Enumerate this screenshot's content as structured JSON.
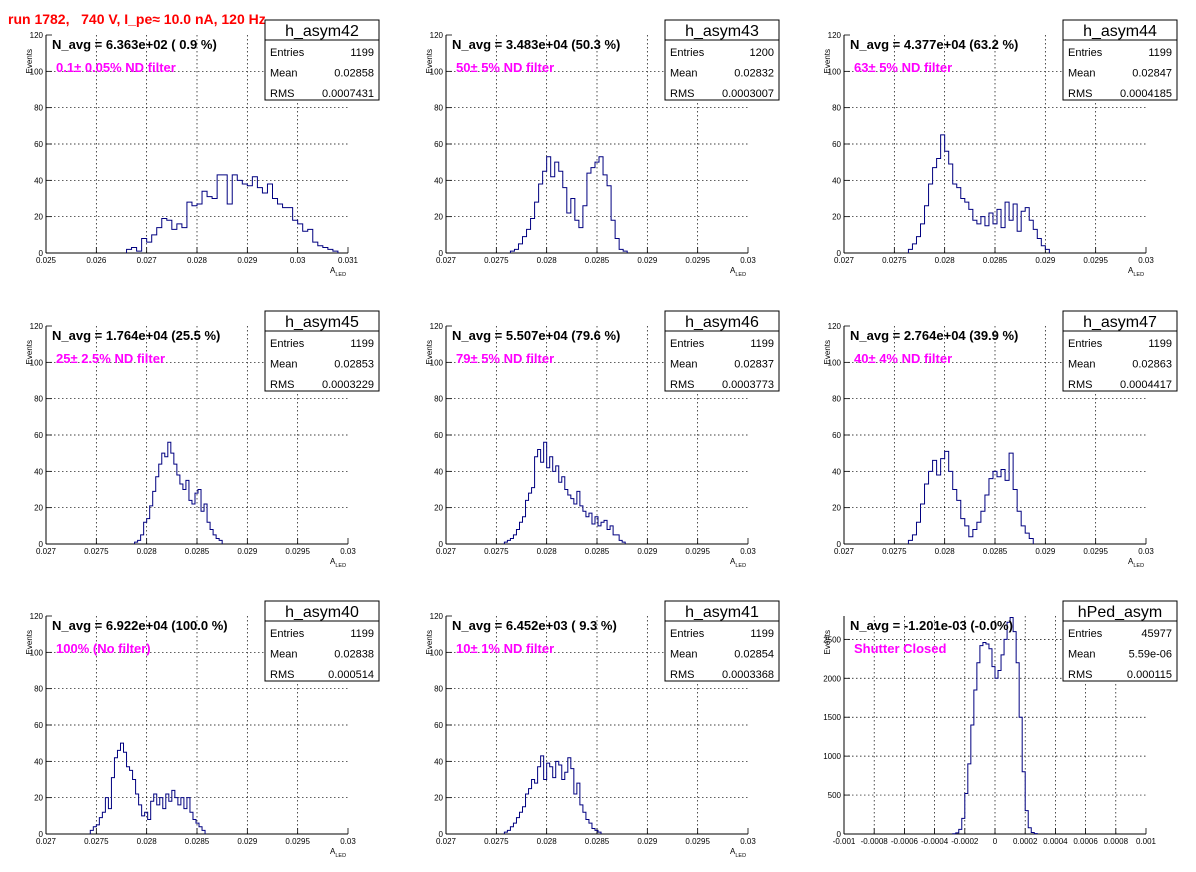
{
  "page_title": "run 1782,   740 V, I_pe≈ 10.0 nA, 120 Hz",
  "colors": {
    "histogram": "#000080",
    "title": "#ff0000",
    "filter_label": "#ff00ff"
  },
  "chart_data": [
    {
      "type": "histogram",
      "name": "h_asym42",
      "navg": "N_avg = 6.363e+02 ( 0.9 %)",
      "filter": "0.1± 0.05% ND filter",
      "stats": {
        "entries": "1199",
        "mean": "0.02858",
        "rms": "0.0007431"
      },
      "xlim": [
        0.025,
        0.031
      ],
      "xticks": [
        "0.025",
        "0.026",
        "0.027",
        "0.028",
        "0.029",
        "0.03",
        "0.031"
      ],
      "ylim": [
        0,
        120
      ],
      "yticks": [
        "0",
        "20",
        "40",
        "60",
        "80",
        "100",
        "120"
      ],
      "xlabel": "A",
      "xlabel_sub": "LED",
      "ylabel": "Events",
      "x_start": 0.0266,
      "bin_width": 0.0001,
      "counts": [
        2,
        3,
        1,
        8,
        6,
        10,
        14,
        19,
        18,
        13,
        16,
        14,
        28,
        26,
        27,
        34,
        31,
        30,
        43,
        43,
        27,
        43,
        40,
        38,
        37,
        42,
        36,
        33,
        38,
        30,
        27,
        25,
        25,
        18,
        16,
        12,
        13,
        6,
        4,
        3,
        2,
        1
      ]
    },
    {
      "type": "histogram",
      "name": "h_asym43",
      "navg": "N_avg = 3.483e+04 (50.3 %)",
      "filter": "50± 5% ND filter",
      "stats": {
        "entries": "1200",
        "mean": "0.02832",
        "rms": "0.0003007"
      },
      "xlim": [
        0.027,
        0.03
      ],
      "xticks": [
        "0.027",
        "0.0275",
        "0.028",
        "0.0285",
        "0.029",
        "0.0295",
        "0.03"
      ],
      "ylim": [
        0,
        120
      ],
      "yticks": [
        "0",
        "20",
        "40",
        "60",
        "80",
        "100",
        "120"
      ],
      "xlabel": "A",
      "xlabel_sub": "LED",
      "ylabel": "Events",
      "x_start": 0.02764,
      "bin_width": 4e-05,
      "counts": [
        1,
        2,
        5,
        9,
        13,
        19,
        28,
        38,
        45,
        53,
        42,
        50,
        45,
        36,
        22,
        30,
        18,
        14,
        26,
        44,
        47,
        50,
        53,
        43,
        37,
        18,
        8,
        2,
        1
      ]
    },
    {
      "type": "histogram",
      "name": "h_asym44",
      "navg": "N_avg = 4.377e+04 (63.2 %)",
      "filter": "63± 5% ND filter",
      "stats": {
        "entries": "1199",
        "mean": "0.02847",
        "rms": "0.0004185"
      },
      "xlim": [
        0.027,
        0.03
      ],
      "xticks": [
        "0.027",
        "0.0275",
        "0.028",
        "0.0285",
        "0.029",
        "0.0295",
        "0.03"
      ],
      "ylim": [
        0,
        120
      ],
      "yticks": [
        "0",
        "20",
        "40",
        "60",
        "80",
        "100",
        "120"
      ],
      "xlabel": "A",
      "xlabel_sub": "LED",
      "ylabel": "Events",
      "x_start": 0.02764,
      "bin_width": 4e-05,
      "counts": [
        2,
        5,
        9,
        16,
        26,
        38,
        47,
        52,
        65,
        56,
        49,
        38,
        36,
        30,
        28,
        24,
        18,
        16,
        20,
        15,
        22,
        16,
        24,
        14,
        28,
        18,
        27,
        12,
        23,
        25,
        18,
        13,
        8,
        4,
        2
      ]
    },
    {
      "type": "histogram",
      "name": "h_asym45",
      "navg": "N_avg = 1.764e+04 (25.5 %)",
      "filter": "25± 2.5% ND filter",
      "stats": {
        "entries": "1199",
        "mean": "0.02853",
        "rms": "0.0003229"
      },
      "xlim": [
        0.027,
        0.03
      ],
      "xticks": [
        "0.027",
        "0.0275",
        "0.028",
        "0.0285",
        "0.029",
        "0.0295",
        "0.03"
      ],
      "ylim": [
        0,
        120
      ],
      "yticks": [
        "0",
        "20",
        "40",
        "60",
        "80",
        "100",
        "120"
      ],
      "xlabel": "A",
      "xlabel_sub": "LED",
      "ylabel": "Events",
      "x_start": 0.02788,
      "bin_width": 3e-05,
      "counts": [
        1,
        2,
        5,
        12,
        14,
        21,
        29,
        37,
        44,
        50,
        48,
        56,
        50,
        44,
        38,
        33,
        30,
        35,
        24,
        22,
        28,
        30,
        18,
        22,
        12,
        8,
        5,
        3,
        2
      ]
    },
    {
      "type": "histogram",
      "name": "h_asym46",
      "navg": "N_avg = 5.507e+04 (79.6 %)",
      "filter": "79± 5% ND filter",
      "stats": {
        "entries": "1199",
        "mean": "0.02837",
        "rms": "0.0003773"
      },
      "xlim": [
        0.027,
        0.03
      ],
      "xticks": [
        "0.027",
        "0.0275",
        "0.028",
        "0.0285",
        "0.029",
        "0.0295",
        "0.03"
      ],
      "ylim": [
        0,
        120
      ],
      "yticks": [
        "0",
        "20",
        "40",
        "60",
        "80",
        "100",
        "120"
      ],
      "xlabel": "A",
      "xlabel_sub": "LED",
      "ylabel": "Events",
      "x_start": 0.02758,
      "bin_width": 3e-05,
      "counts": [
        1,
        2,
        3,
        5,
        8,
        12,
        15,
        24,
        28,
        31,
        48,
        52,
        45,
        56,
        42,
        48,
        40,
        43,
        34,
        37,
        30,
        27,
        25,
        22,
        29,
        21,
        18,
        15,
        17,
        11,
        15,
        10,
        12,
        13,
        8,
        10,
        5,
        5,
        2,
        1
      ]
    },
    {
      "type": "histogram",
      "name": "h_asym47",
      "navg": "N_avg = 2.764e+04 (39.9 %)",
      "filter": "40± 4% ND filter",
      "stats": {
        "entries": "1199",
        "mean": "0.02863",
        "rms": "0.0004417"
      },
      "xlim": [
        0.027,
        0.03
      ],
      "xticks": [
        "0.027",
        "0.0275",
        "0.028",
        "0.0285",
        "0.029",
        "0.0295",
        "0.03"
      ],
      "ylim": [
        0,
        120
      ],
      "yticks": [
        "0",
        "20",
        "40",
        "60",
        "80",
        "100",
        "120"
      ],
      "xlabel": "A",
      "xlabel_sub": "LED",
      "ylabel": "Events",
      "x_start": 0.02764,
      "bin_width": 4e-05,
      "counts": [
        2,
        5,
        12,
        22,
        33,
        40,
        46,
        38,
        47,
        51,
        40,
        30,
        24,
        14,
        10,
        4,
        8,
        12,
        18,
        27,
        36,
        40,
        37,
        41,
        35,
        50,
        30,
        18,
        10,
        6,
        3
      ]
    },
    {
      "type": "histogram",
      "name": "h_asym40",
      "navg": "N_avg = 6.922e+04 (100.0 %)",
      "filter": "100% (No filter)",
      "stats": {
        "entries": "1199",
        "mean": "0.02838",
        "rms": "0.000514"
      },
      "xlim": [
        0.027,
        0.03
      ],
      "xticks": [
        "0.027",
        "0.0275",
        "0.028",
        "0.0285",
        "0.029",
        "0.0295",
        "0.03"
      ],
      "ylim": [
        0,
        120
      ],
      "yticks": [
        "0",
        "20",
        "40",
        "60",
        "80",
        "100",
        "120"
      ],
      "xlabel": "A",
      "xlabel_sub": "LED",
      "ylabel": "Events",
      "x_start": 0.02744,
      "bin_width": 3e-05,
      "counts": [
        2,
        4,
        5,
        9,
        12,
        20,
        14,
        31,
        42,
        46,
        50,
        45,
        37,
        35,
        30,
        22,
        16,
        10,
        12,
        8,
        18,
        22,
        16,
        20,
        14,
        22,
        18,
        24,
        20,
        16,
        20,
        14,
        20,
        12,
        8,
        6,
        4,
        2
      ]
    },
    {
      "type": "histogram",
      "name": "h_asym41",
      "navg": "N_avg = 6.452e+03 ( 9.3 %)",
      "filter": "10± 1% ND filter",
      "stats": {
        "entries": "1199",
        "mean": "0.02854",
        "rms": "0.0003368"
      },
      "xlim": [
        0.027,
        0.03
      ],
      "xticks": [
        "0.027",
        "0.0275",
        "0.028",
        "0.0285",
        "0.029",
        "0.0295",
        "0.03"
      ],
      "ylim": [
        0,
        120
      ],
      "yticks": [
        "0",
        "20",
        "40",
        "60",
        "80",
        "100",
        "120"
      ],
      "xlabel": "A",
      "xlabel_sub": "LED",
      "ylabel": "Events",
      "x_start": 0.02758,
      "bin_width": 3e-05,
      "counts": [
        1,
        2,
        4,
        6,
        9,
        12,
        15,
        22,
        25,
        30,
        28,
        37,
        43,
        30,
        39,
        37,
        31,
        40,
        38,
        30,
        34,
        42,
        36,
        22,
        28,
        16,
        12,
        8,
        6,
        3,
        2,
        1
      ]
    },
    {
      "type": "histogram",
      "name": "hPed_asym",
      "navg": "N_avg = -1.201e-03 (-0.0%)",
      "filter": "Shutter Closed",
      "stats": {
        "entries": "45977",
        "mean": "5.59e-06",
        "rms": "0.000115"
      },
      "xlim": [
        -0.001,
        0.001
      ],
      "xticks": [
        "-0.001",
        "-0.0008",
        "-0.0006",
        "-0.0004",
        "-0.0002",
        "0",
        "0.0002",
        "0.0004",
        "0.0006",
        "0.0008",
        "0.001"
      ],
      "ylim": [
        0,
        2800
      ],
      "yticks": [
        "0",
        "500",
        "1000",
        "1500",
        "2000",
        "2500"
      ],
      "xlabel": "",
      "xlabel_sub": "",
      "ylabel": "Events",
      "x_start": -0.00028,
      "bin_width": 2e-05,
      "counts": [
        3,
        15,
        60,
        200,
        520,
        900,
        1400,
        1850,
        2200,
        2420,
        2460,
        2440,
        2380,
        2150,
        2000,
        2100,
        2300,
        2500,
        2720,
        2780,
        2600,
        2200,
        1500,
        800,
        300,
        80,
        20,
        5
      ]
    }
  ]
}
